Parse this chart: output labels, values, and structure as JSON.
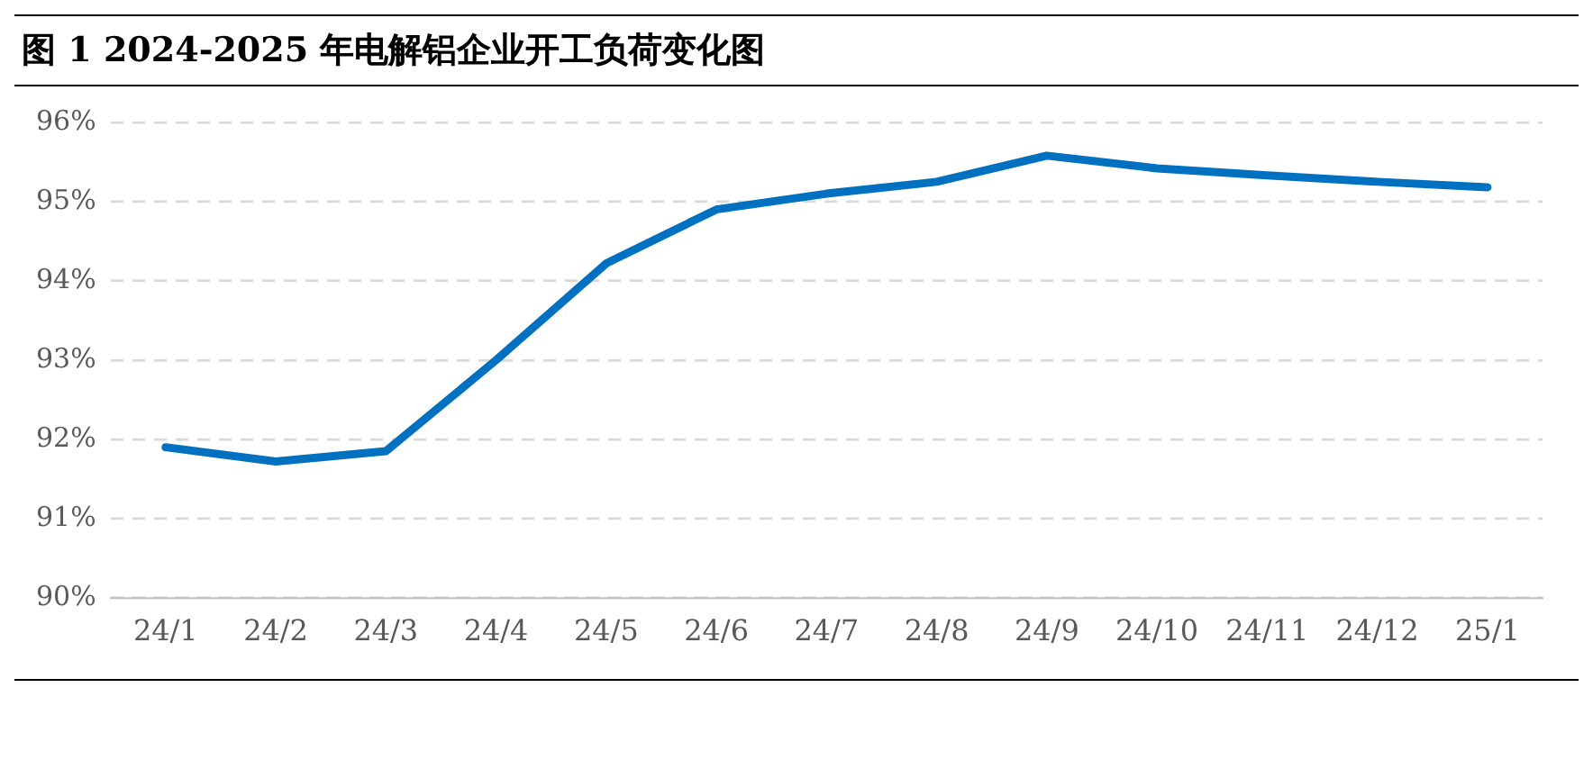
{
  "chart_data": {
    "type": "line",
    "title": "图 1 2024-2025 年电解铝企业开工负荷变化图",
    "categories": [
      "24/1",
      "24/2",
      "24/3",
      "24/4",
      "24/5",
      "24/6",
      "24/7",
      "24/8",
      "24/9",
      "24/10",
      "24/11",
      "24/12",
      "25/1"
    ],
    "series": [
      {
        "color": "#0070c0",
        "values": [
          91.9,
          91.72,
          91.85,
          93.0,
          94.22,
          94.9,
          95.1,
          95.25,
          95.58,
          95.42,
          95.33,
          95.25,
          95.18
        ]
      }
    ],
    "ylim": [
      90,
      96
    ],
    "yticks": [
      {
        "value": 90,
        "label": "90%"
      },
      {
        "value": 91,
        "label": "91%"
      },
      {
        "value": 92,
        "label": "92%"
      },
      {
        "value": 93,
        "label": "93%"
      },
      {
        "value": 94,
        "label": "94%"
      },
      {
        "value": 95,
        "label": "95%"
      },
      {
        "value": 96,
        "label": "96%"
      }
    ],
    "grid": "y",
    "legend": false,
    "marker": "none",
    "line_style": "solid"
  }
}
